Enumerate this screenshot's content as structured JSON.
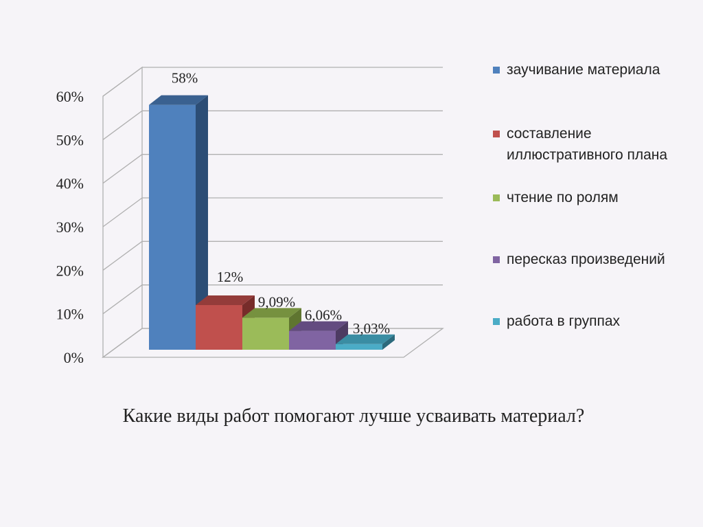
{
  "chart_data": {
    "type": "bar",
    "title": "Какие виды работ помогают лучше усваивать материал?",
    "categories": [
      "заучивание материала",
      "составление иллюстративного плана",
      "чтение по ролям",
      "пересказ произведений",
      "работа в группах"
    ],
    "values": [
      58,
      12,
      9.09,
      6.06,
      3.03
    ],
    "data_labels": [
      "58%",
      "12%",
      "9,09%",
      "6,06%",
      "3,03%"
    ],
    "yticks": [
      "0%",
      "10%",
      "20%",
      "30%",
      "40%",
      "50%",
      "60%"
    ],
    "ylim": [
      0,
      60
    ],
    "grid": true,
    "style": "3d-columns",
    "legend_position": "right",
    "colors": [
      "#4f81bd",
      "#c0504d",
      "#9bbb59",
      "#8064a2",
      "#4bacc6"
    ],
    "side_colors": [
      "#2c4d75",
      "#772c2a",
      "#5f7530",
      "#4d3b62",
      "#2c6a7c"
    ],
    "top_colors": [
      "#3a6190",
      "#943c3a",
      "#76913f",
      "#634b80",
      "#3a8da3"
    ]
  }
}
